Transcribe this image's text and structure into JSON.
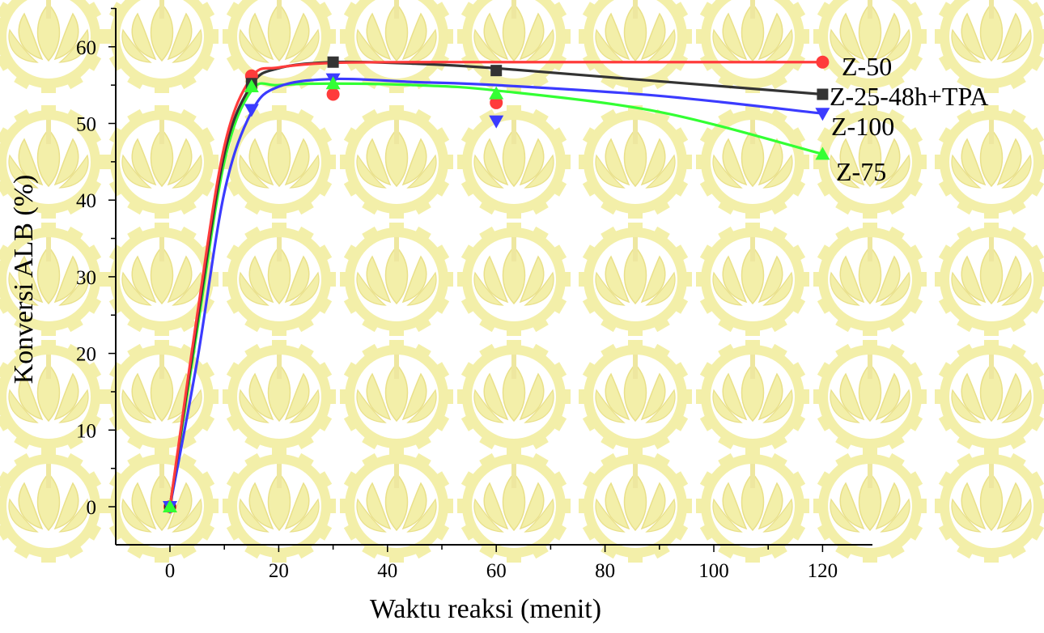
{
  "chart_data": {
    "type": "scatter",
    "title": "",
    "xlabel": "Waktu reaksi (menit)",
    "ylabel": "Konversi ALB (%)",
    "xlim": [
      -10,
      130
    ],
    "ylim": [
      -5,
      65
    ],
    "x_ticks": [
      0,
      20,
      40,
      60,
      80,
      100,
      120
    ],
    "y_ticks": [
      0,
      10,
      20,
      30,
      40,
      50,
      60
    ],
    "grid": false,
    "legend": "labels at line ends",
    "series": [
      {
        "name": "Z-50",
        "color": "#ff3b3b",
        "marker": "circle",
        "points": [
          [
            0,
            0
          ],
          [
            15,
            56.2
          ],
          [
            30,
            53.8
          ],
          [
            60,
            52.7
          ],
          [
            120,
            58.0
          ]
        ],
        "curve": [
          [
            0,
            0
          ],
          [
            5,
            25
          ],
          [
            10,
            47
          ],
          [
            15,
            56
          ],
          [
            20,
            57.3
          ],
          [
            30,
            57.9
          ],
          [
            45,
            58.0
          ],
          [
            60,
            58.0
          ],
          [
            90,
            58.0
          ],
          [
            120,
            58.0
          ]
        ]
      },
      {
        "name": "Z-25-48h+TPA",
        "color": "#333333",
        "marker": "square",
        "points": [
          [
            0,
            0
          ],
          [
            15,
            55.2
          ],
          [
            30,
            58.0
          ],
          [
            60,
            56.9
          ],
          [
            120,
            53.8
          ]
        ],
        "curve": [
          [
            0,
            0
          ],
          [
            5,
            24
          ],
          [
            10,
            46
          ],
          [
            15,
            55
          ],
          [
            20,
            57.2
          ],
          [
            30,
            58.0
          ],
          [
            45,
            57.8
          ],
          [
            60,
            57.2
          ],
          [
            90,
            55.5
          ],
          [
            120,
            53.8
          ]
        ]
      },
      {
        "name": "Z-100",
        "color": "#3b3bff",
        "marker": "triangle-down",
        "points": [
          [
            0,
            0
          ],
          [
            15,
            51.8
          ],
          [
            30,
            55.8
          ],
          [
            60,
            50.3
          ],
          [
            120,
            51.3
          ]
        ],
        "curve": [
          [
            0,
            0
          ],
          [
            5,
            19
          ],
          [
            10,
            41
          ],
          [
            15,
            51.5
          ],
          [
            20,
            54.8
          ],
          [
            30,
            55.8
          ],
          [
            45,
            55.4
          ],
          [
            60,
            55.0
          ],
          [
            90,
            53.6
          ],
          [
            120,
            51.3
          ]
        ]
      },
      {
        "name": "Z-75",
        "color": "#33ff33",
        "marker": "triangle-up",
        "points": [
          [
            0,
            0
          ],
          [
            15,
            54.8
          ],
          [
            30,
            55.2
          ],
          [
            60,
            53.9
          ],
          [
            120,
            46.0
          ]
        ],
        "curve": [
          [
            0,
            0
          ],
          [
            5,
            23
          ],
          [
            10,
            45
          ],
          [
            15,
            54.3
          ],
          [
            20,
            55.0
          ],
          [
            30,
            55.2
          ],
          [
            45,
            55.0
          ],
          [
            60,
            54.3
          ],
          [
            90,
            51.5
          ],
          [
            120,
            46.0
          ]
        ]
      }
    ]
  },
  "watermark": {
    "icon": "institution-emblem-icon",
    "color": "#f3efa9"
  }
}
